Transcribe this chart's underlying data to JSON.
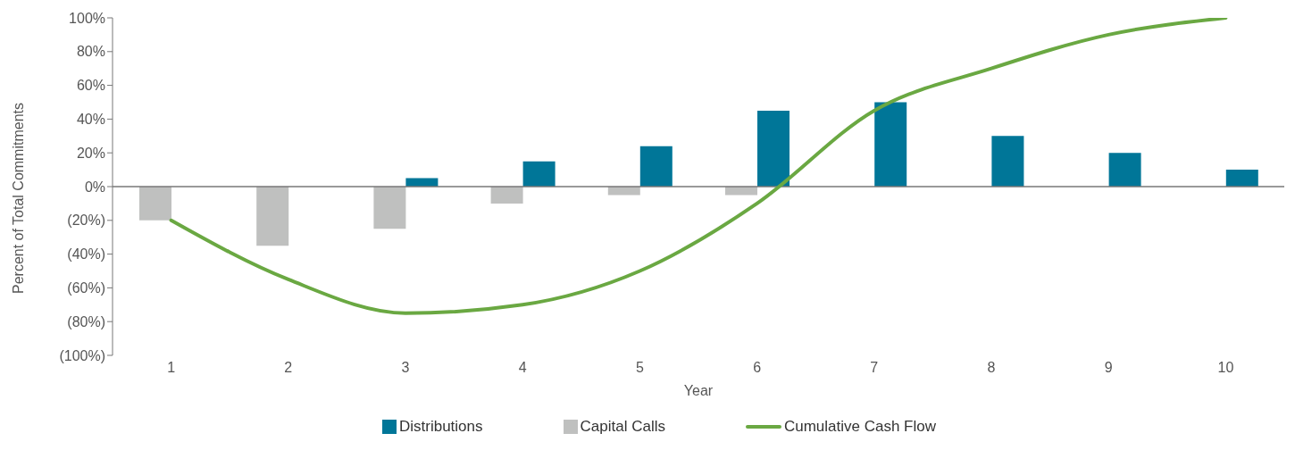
{
  "chart_data": {
    "type": "bar",
    "xlabel": "Year",
    "ylabel": "Percent of Total Commitments",
    "categories": [
      "1",
      "2",
      "3",
      "4",
      "5",
      "6",
      "7",
      "8",
      "9",
      "10"
    ],
    "series": [
      {
        "name": "Distributions",
        "color": "#007698",
        "values": [
          0,
          0,
          5,
          15,
          24,
          45,
          50,
          30,
          20,
          10
        ]
      },
      {
        "name": "Capital Calls",
        "color": "#bfc0bf",
        "values": [
          -20,
          -35,
          -25,
          -10,
          -5,
          -5,
          0,
          0,
          0,
          0
        ]
      },
      {
        "name": "Cumulative Cash Flow",
        "type": "line",
        "color": "#6aa842",
        "values": [
          -20,
          -55,
          -75,
          -70,
          -50,
          -10,
          45,
          70,
          90,
          100
        ]
      }
    ],
    "ylim": [
      -100,
      100
    ],
    "yticks": [
      {
        "value": -100,
        "label": "(100%)"
      },
      {
        "value": -80,
        "label": "(80%)"
      },
      {
        "value": -60,
        "label": "(60%)"
      },
      {
        "value": -40,
        "label": "(40%)"
      },
      {
        "value": -20,
        "label": "(20%)"
      },
      {
        "value": 0,
        "label": "0%"
      },
      {
        "value": 20,
        "label": "20%"
      },
      {
        "value": 40,
        "label": "40%"
      },
      {
        "value": 60,
        "label": "60%"
      },
      {
        "value": 80,
        "label": "80%"
      },
      {
        "value": 100,
        "label": "100%"
      }
    ],
    "legend": "bottom",
    "marker": "none",
    "line_style": "solid"
  }
}
